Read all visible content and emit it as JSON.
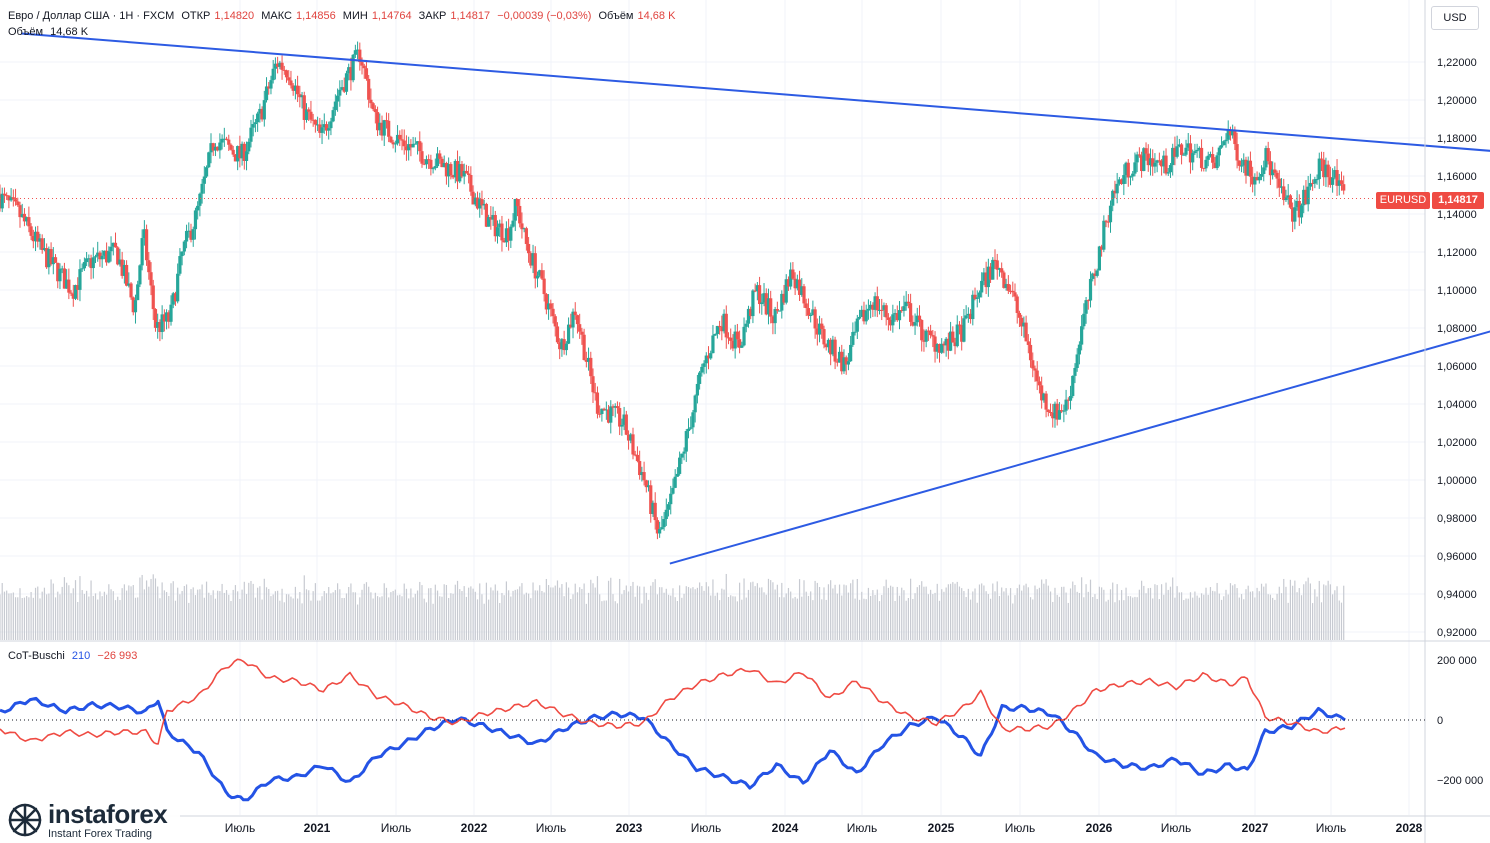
{
  "header": {
    "symbol_desc": "Евро / Доллар США · 1Н · FXCM",
    "open_label": "ОТКР",
    "open": "1,14820",
    "high_label": "МАКС",
    "high": "1,14856",
    "low_label": "МИН",
    "low": "1,14764",
    "close_label": "ЗАКР",
    "close": "1,14817",
    "change": "−0,00039 (−0,03%)",
    "volume_label": "Объём",
    "volume": "14,68 K"
  },
  "volume_legend": {
    "label": "Объём",
    "value": "14,68 K"
  },
  "indicator": {
    "name": "CoT-Buschi",
    "value1": "210",
    "value2": "−26 993"
  },
  "currency_button": "USD",
  "last_price": {
    "symbol": "EURUSD",
    "value": "1,14817"
  },
  "logo": {
    "name": "instaforex",
    "tagline": "Instant Forex Trading"
  },
  "colors": {
    "up": "#26a69a",
    "down": "#ef5350",
    "trendline": "#2d5be3",
    "cot_blue": "#2453e5",
    "cot_red": "#ef4b43",
    "badge": "#ef4b43"
  },
  "chart_data": [
    {
      "type": "candlestick",
      "symbol": "EURUSD",
      "x_tick_labels": [
        "Июль",
        "2021",
        "Июль",
        "2022",
        "Июль",
        "2023",
        "Июль",
        "2024",
        "Июль",
        "2025",
        "Июль",
        "2026",
        "Июль",
        "2027",
        "Июль",
        "2028"
      ],
      "y_tick_labels": [
        "1,22000",
        "1,20000",
        "1,18000",
        "1,16000",
        "1,14000",
        "1,12000",
        "1,10000",
        "1,08000",
        "1,06000",
        "1,04000",
        "1,02000",
        "1,00000",
        "0,98000",
        "0,96000",
        "0,94000",
        "0,92000"
      ],
      "y_ticks": [
        1.22,
        1.2,
        1.18,
        1.16,
        1.14,
        1.12,
        1.1,
        1.08,
        1.06,
        1.04,
        1.02,
        1.0,
        0.98,
        0.96,
        0.94,
        0.92
      ],
      "ylim": [
        0.915,
        1.235
      ],
      "xlim": [
        2020.08,
        2028.1
      ],
      "price_path": [
        [
          2020.08,
          1.15
        ],
        [
          2020.2,
          1.14
        ],
        [
          2020.33,
          1.12
        ],
        [
          2020.5,
          1.1
        ],
        [
          2020.6,
          1.115
        ],
        [
          2020.75,
          1.12
        ],
        [
          2020.85,
          1.09
        ],
        [
          2020.9,
          1.13
        ],
        [
          2020.97,
          1.08
        ],
        [
          2021.05,
          1.085
        ],
        [
          2021.12,
          1.12
        ],
        [
          2021.2,
          1.14
        ],
        [
          2021.3,
          1.18
        ],
        [
          2021.45,
          1.17
        ],
        [
          2021.55,
          1.19
        ],
        [
          2021.65,
          1.22
        ],
        [
          2021.72,
          1.215
        ],
        [
          2021.8,
          1.195
        ],
        [
          2021.9,
          1.18
        ],
        [
          2022.0,
          1.205
        ],
        [
          2022.12,
          1.225
        ],
        [
          2022.2,
          1.19
        ],
        [
          2022.32,
          1.18
        ],
        [
          2022.5,
          1.17
        ],
        [
          2022.7,
          1.16
        ],
        [
          2022.85,
          1.135
        ],
        [
          2022.95,
          1.13
        ],
        [
          2023.0,
          1.145
        ],
        [
          2023.05,
          1.125
        ],
        [
          2023.15,
          1.1
        ],
        [
          2023.25,
          1.07
        ],
        [
          2023.33,
          1.09
        ],
        [
          2023.45,
          1.04
        ],
        [
          2023.6,
          1.03
        ],
        [
          2023.72,
          1.0
        ],
        [
          2023.8,
          0.97
        ],
        [
          2023.86,
          0.985
        ],
        [
          2023.95,
          1.02
        ],
        [
          2024.05,
          1.06
        ],
        [
          2024.15,
          1.085
        ],
        [
          2024.25,
          1.07
        ],
        [
          2024.35,
          1.1
        ],
        [
          2024.45,
          1.085
        ],
        [
          2024.55,
          1.11
        ],
        [
          2024.65,
          1.09
        ],
        [
          2024.72,
          1.075
        ],
        [
          2024.85,
          1.06
        ],
        [
          2024.92,
          1.08
        ],
        [
          2025.0,
          1.095
        ],
        [
          2025.1,
          1.085
        ],
        [
          2025.2,
          1.09
        ],
        [
          2025.3,
          1.075
        ],
        [
          2025.42,
          1.07
        ],
        [
          2025.52,
          1.08
        ],
        [
          2025.6,
          1.1
        ],
        [
          2025.7,
          1.115
        ],
        [
          2025.78,
          1.1
        ],
        [
          2025.88,
          1.07
        ],
        [
          2025.95,
          1.045
        ],
        [
          2026.03,
          1.035
        ],
        [
          2026.1,
          1.04
        ],
        [
          2026.18,
          1.08
        ],
        [
          2026.28,
          1.12
        ],
        [
          2026.35,
          1.15
        ],
        [
          2026.45,
          1.165
        ],
        [
          2026.55,
          1.17
        ],
        [
          2026.65,
          1.165
        ],
        [
          2026.75,
          1.175
        ],
        [
          2026.85,
          1.17
        ],
        [
          2026.93,
          1.165
        ],
        [
          2027.0,
          1.185
        ],
        [
          2027.07,
          1.17
        ],
        [
          2027.15,
          1.16
        ],
        [
          2027.22,
          1.17
        ],
        [
          2027.3,
          1.15
        ],
        [
          2027.38,
          1.14
        ],
        [
          2027.45,
          1.15
        ],
        [
          2027.52,
          1.165
        ],
        [
          2027.6,
          1.16
        ],
        [
          2027.65,
          1.148
        ]
      ],
      "trendlines": [
        {
          "from": [
            2020.2,
            1.235
          ],
          "to": [
            2028.5,
            1.173
          ]
        },
        {
          "from": [
            2023.85,
            0.956
          ],
          "to": [
            2028.8,
            1.087
          ]
        }
      ],
      "last_price": 1.14817
    },
    {
      "type": "line",
      "indicator": "CoT-Buschi",
      "y_tick_labels": [
        "200 000",
        "0",
        "−200 000"
      ],
      "y_ticks": [
        200000,
        0,
        -200000
      ],
      "ylim": [
        -290000,
        230000
      ],
      "series": [
        {
          "color": "#2453e5",
          "points": [
            [
              2020.08,
              25000
            ],
            [
              2020.25,
              70000
            ],
            [
              2020.45,
              30000
            ],
            [
              2020.6,
              50000
            ],
            [
              2020.75,
              45000
            ],
            [
              2020.9,
              25000
            ],
            [
              2020.97,
              70000
            ],
            [
              2021.02,
              -40000
            ],
            [
              2021.2,
              -110000
            ],
            [
              2021.35,
              -240000
            ],
            [
              2021.45,
              -270000
            ],
            [
              2021.6,
              -200000
            ],
            [
              2021.75,
              -190000
            ],
            [
              2021.9,
              -150000
            ],
            [
              2022.05,
              -210000
            ],
            [
              2022.2,
              -120000
            ],
            [
              2022.35,
              -80000
            ],
            [
              2022.5,
              -30000
            ],
            [
              2022.65,
              5000
            ],
            [
              2022.8,
              -20000
            ],
            [
              2022.95,
              -50000
            ],
            [
              2023.1,
              -80000
            ],
            [
              2023.25,
              -30000
            ],
            [
              2023.4,
              5000
            ],
            [
              2023.55,
              20000
            ],
            [
              2023.7,
              10000
            ],
            [
              2023.85,
              -80000
            ],
            [
              2024.0,
              -160000
            ],
            [
              2024.15,
              -190000
            ],
            [
              2024.3,
              -220000
            ],
            [
              2024.45,
              -150000
            ],
            [
              2024.6,
              -210000
            ],
            [
              2024.75,
              -100000
            ],
            [
              2024.9,
              -180000
            ],
            [
              2025.05,
              -80000
            ],
            [
              2025.2,
              -20000
            ],
            [
              2025.35,
              10000
            ],
            [
              2025.5,
              -60000
            ],
            [
              2025.6,
              -120000
            ],
            [
              2025.72,
              40000
            ],
            [
              2025.85,
              40000
            ],
            [
              2026.0,
              20000
            ],
            [
              2026.12,
              -40000
            ],
            [
              2026.25,
              -120000
            ],
            [
              2026.4,
              -150000
            ],
            [
              2026.55,
              -160000
            ],
            [
              2026.7,
              -130000
            ],
            [
              2026.85,
              -180000
            ],
            [
              2027.0,
              -150000
            ],
            [
              2027.1,
              -170000
            ],
            [
              2027.2,
              -40000
            ],
            [
              2027.35,
              -20000
            ],
            [
              2027.5,
              30000
            ],
            [
              2027.65,
              0
            ]
          ]
        },
        {
          "color": "#ef4b43",
          "points": [
            [
              2020.08,
              -30000
            ],
            [
              2020.25,
              -70000
            ],
            [
              2020.45,
              -40000
            ],
            [
              2020.6,
              -50000
            ],
            [
              2020.75,
              -40000
            ],
            [
              2020.9,
              -40000
            ],
            [
              2020.97,
              -80000
            ],
            [
              2021.02,
              30000
            ],
            [
              2021.2,
              80000
            ],
            [
              2021.35,
              180000
            ],
            [
              2021.45,
              200000
            ],
            [
              2021.6,
              140000
            ],
            [
              2021.75,
              130000
            ],
            [
              2021.9,
              100000
            ],
            [
              2022.05,
              150000
            ],
            [
              2022.2,
              80000
            ],
            [
              2022.35,
              50000
            ],
            [
              2022.5,
              10000
            ],
            [
              2022.65,
              -10000
            ],
            [
              2022.8,
              20000
            ],
            [
              2022.95,
              40000
            ],
            [
              2023.1,
              60000
            ],
            [
              2023.25,
              20000
            ],
            [
              2023.4,
              -10000
            ],
            [
              2023.55,
              -20000
            ],
            [
              2023.7,
              -10000
            ],
            [
              2023.85,
              70000
            ],
            [
              2024.0,
              120000
            ],
            [
              2024.15,
              150000
            ],
            [
              2024.3,
              170000
            ],
            [
              2024.45,
              120000
            ],
            [
              2024.6,
              160000
            ],
            [
              2024.75,
              70000
            ],
            [
              2024.9,
              130000
            ],
            [
              2025.05,
              60000
            ],
            [
              2025.2,
              10000
            ],
            [
              2025.35,
              -10000
            ],
            [
              2025.5,
              40000
            ],
            [
              2025.6,
              90000
            ],
            [
              2025.72,
              -30000
            ],
            [
              2025.85,
              -30000
            ],
            [
              2026.0,
              -20000
            ],
            [
              2026.12,
              30000
            ],
            [
              2026.25,
              100000
            ],
            [
              2026.4,
              120000
            ],
            [
              2026.55,
              130000
            ],
            [
              2026.7,
              110000
            ],
            [
              2026.85,
              150000
            ],
            [
              2027.0,
              120000
            ],
            [
              2027.1,
              140000
            ],
            [
              2027.2,
              10000
            ],
            [
              2027.35,
              -10000
            ],
            [
              2027.5,
              -40000
            ],
            [
              2027.65,
              -27000
            ]
          ]
        }
      ]
    }
  ]
}
